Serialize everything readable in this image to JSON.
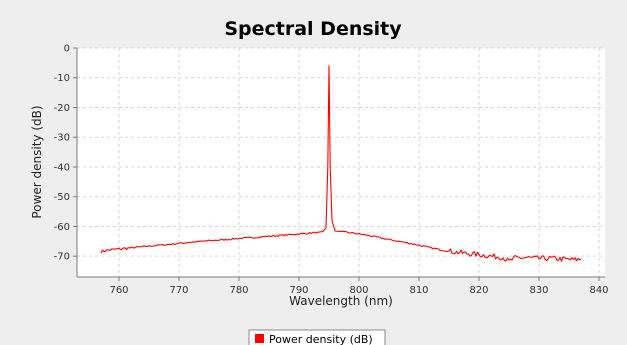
{
  "chart_data": {
    "type": "line",
    "title": "Spectral Density",
    "xlabel": "Wavelength (nm)",
    "ylabel": "Power density (dB)",
    "xlim": [
      753,
      841
    ],
    "ylim": [
      -77,
      0
    ],
    "xticks": [
      760,
      770,
      780,
      790,
      800,
      810,
      820,
      830,
      840
    ],
    "yticks": [
      0,
      -10,
      -20,
      -30,
      -40,
      -50,
      -60,
      -70
    ],
    "grid": true,
    "legend_position": "bottom-center",
    "series": [
      {
        "name": "Power density (dB)",
        "color": "#ff0000",
        "x": [
          757,
          758,
          760,
          762,
          765,
          768,
          770,
          772,
          775,
          778,
          780,
          782,
          785,
          787,
          789,
          790,
          791,
          792,
          793,
          794,
          794.5,
          794.8,
          795,
          795.2,
          795.5,
          796,
          797,
          798,
          800,
          802,
          804,
          806,
          808,
          810,
          812,
          814,
          816,
          818,
          820,
          822,
          824,
          825,
          826,
          828,
          830,
          832,
          834,
          836,
          837
        ],
        "y": [
          -68.5,
          -68,
          -67.6,
          -67.2,
          -66.6,
          -66.1,
          -65.7,
          -65.3,
          -64.8,
          -64.4,
          -64.0,
          -63.8,
          -63.3,
          -63.0,
          -62.7,
          -62.5,
          -62.4,
          -62.2,
          -62.0,
          -61.7,
          -60.5,
          -40,
          -6,
          -40,
          -58,
          -61.5,
          -61.8,
          -62.0,
          -62.5,
          -63.2,
          -64.0,
          -64.8,
          -65.5,
          -66.3,
          -67.2,
          -68.0,
          -68.6,
          -69.1,
          -69.5,
          -70.0,
          -70.4,
          -71.8,
          -70.6,
          -70.5,
          -70.8,
          -70.7,
          -71.0,
          -71.2,
          -71.0
        ]
      }
    ]
  }
}
